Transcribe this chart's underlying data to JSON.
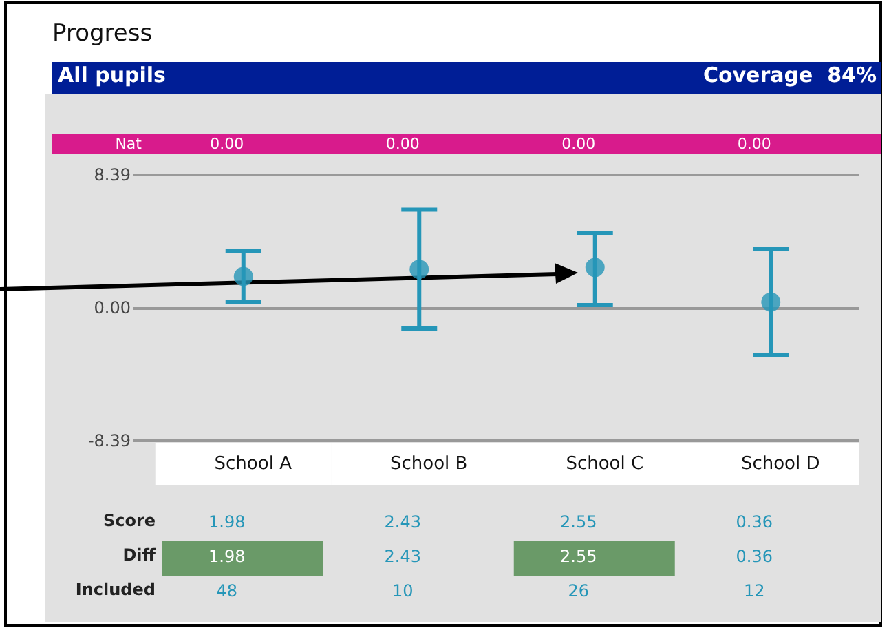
{
  "chart_data": {
    "type": "scatter",
    "title": "Progress",
    "subtitle": "All pupils",
    "annotations": [
      "Coverage  84%"
    ],
    "categories": [
      "School A",
      "School B",
      "School C",
      "School D"
    ],
    "series": [
      {
        "name": "Score",
        "color": "#2596b8",
        "values": [
          1.98,
          2.43,
          2.55,
          0.36
        ],
        "errors": [
          [
            0.35,
            3.57
          ],
          [
            -1.3,
            6.2
          ],
          [
            0.17,
            4.7
          ],
          [
            -3.0,
            3.74
          ]
        ]
      },
      {
        "name": "Nat",
        "type": "other",
        "values": [
          null,
          null,
          null,
          null
        ],
        "value_labels": [
          "0.00",
          "0.00",
          "0.00",
          "0.00"
        ]
      },
      {
        "name": "Diff",
        "type": "other",
        "colors": [
          "#6a9a68",
          null,
          "#6a9a68",
          null
        ],
        "values": [
          null,
          null,
          null,
          null
        ],
        "value_labels": [
          "1.98",
          "2.43",
          "2.55",
          "0.36"
        ]
      },
      {
        "name": "Included",
        "type": "other",
        "values": [
          null,
          null,
          null,
          null
        ],
        "value_labels": [
          "48",
          "10",
          "26",
          "12"
        ]
      }
    ],
    "ylim": [
      -8.39,
      8.39
    ],
    "yticks": [
      -8.39,
      {
        "value": 0,
        "label": "0.00"
      },
      8.39
    ],
    "grid": "y",
    "marker": "circle",
    "data_labels": true
  }
}
